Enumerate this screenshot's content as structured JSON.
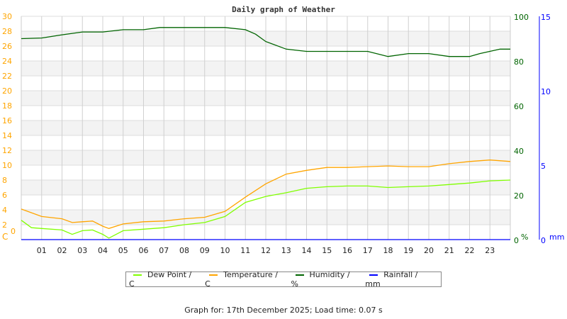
{
  "chart_data": {
    "type": "line",
    "title": "Daily graph of Weather",
    "x_ticks": [
      "01",
      "02",
      "03",
      "04",
      "05",
      "06",
      "07",
      "08",
      "09",
      "10",
      "11",
      "12",
      "13",
      "14",
      "15",
      "16",
      "17",
      "18",
      "19",
      "20",
      "21",
      "22",
      "23"
    ],
    "xlim": [
      0,
      24
    ],
    "axes": {
      "left": {
        "unit": "C",
        "ylim": [
          0,
          30
        ],
        "ticks": [
          0,
          2,
          4,
          6,
          8,
          10,
          12,
          14,
          16,
          18,
          20,
          22,
          24,
          26,
          28,
          30
        ],
        "color": "#ffa500"
      },
      "right1": {
        "unit": "%",
        "ylim": [
          0,
          100
        ],
        "ticks": [
          0,
          20,
          40,
          60,
          80,
          100
        ],
        "color": "#006400"
      },
      "right2": {
        "unit": "mm",
        "ylim": [
          0,
          15
        ],
        "ticks": [
          0,
          5,
          10,
          15
        ],
        "color": "#0000ff"
      }
    },
    "grid": true,
    "legend_position": "bottom",
    "series": [
      {
        "name": "Dew Point / C",
        "color": "#80ff00",
        "axis": "left",
        "x": [
          0,
          0.5,
          1,
          2,
          2.5,
          3,
          3.5,
          4,
          4.3,
          5,
          6,
          7,
          8,
          9,
          10,
          11,
          12,
          13,
          14,
          15,
          16,
          17,
          18,
          19,
          20,
          21,
          22,
          23,
          24
        ],
        "y": [
          2.6,
          1.6,
          1.5,
          1.3,
          0.7,
          1.2,
          1.3,
          0.7,
          0.2,
          1.2,
          1.4,
          1.6,
          2.0,
          2.3,
          3.1,
          5.0,
          5.8,
          6.3,
          6.9,
          7.1,
          7.2,
          7.2,
          7.0,
          7.1,
          7.2,
          7.4,
          7.6,
          7.9,
          8.0
        ]
      },
      {
        "name": "Temperature / C",
        "color": "#ffa500",
        "axis": "left",
        "x": [
          0,
          1,
          2,
          2.5,
          3,
          3.5,
          4,
          4.3,
          5,
          6,
          7,
          8,
          9,
          10,
          11,
          12,
          13,
          14,
          15,
          16,
          17,
          18,
          19,
          20,
          21,
          22,
          23,
          24
        ],
        "y": [
          4.1,
          3.1,
          2.8,
          2.3,
          2.4,
          2.5,
          1.8,
          1.5,
          2.1,
          2.4,
          2.5,
          2.8,
          3.0,
          3.8,
          5.7,
          7.5,
          8.8,
          9.3,
          9.7,
          9.7,
          9.8,
          9.9,
          9.8,
          9.8,
          10.2,
          10.5,
          10.7,
          10.5
        ]
      },
      {
        "name": "Humidity / %",
        "color": "#006400",
        "axis": "right1",
        "x": [
          0,
          1,
          2,
          3,
          4,
          5,
          6,
          6.8,
          8,
          9,
          10,
          11,
          11.5,
          12,
          13,
          14,
          15,
          16,
          17,
          18,
          19,
          20,
          21,
          22,
          22.5,
          23.5,
          24
        ],
        "y": [
          90,
          90.3,
          91.7,
          93,
          93,
          94,
          94,
          95,
          95,
          95,
          95,
          94,
          92,
          88.7,
          85.3,
          84.3,
          84.3,
          84.3,
          84.3,
          82,
          83.3,
          83.3,
          82,
          82,
          83.3,
          85.3,
          85.3
        ]
      },
      {
        "name": "Rainfall / mm",
        "color": "#0000ff",
        "axis": "right2",
        "x": [
          0,
          24
        ],
        "y": [
          0,
          0
        ]
      }
    ]
  },
  "footer": "Graph for: 17th December 2025; Load time: 0.07 s"
}
